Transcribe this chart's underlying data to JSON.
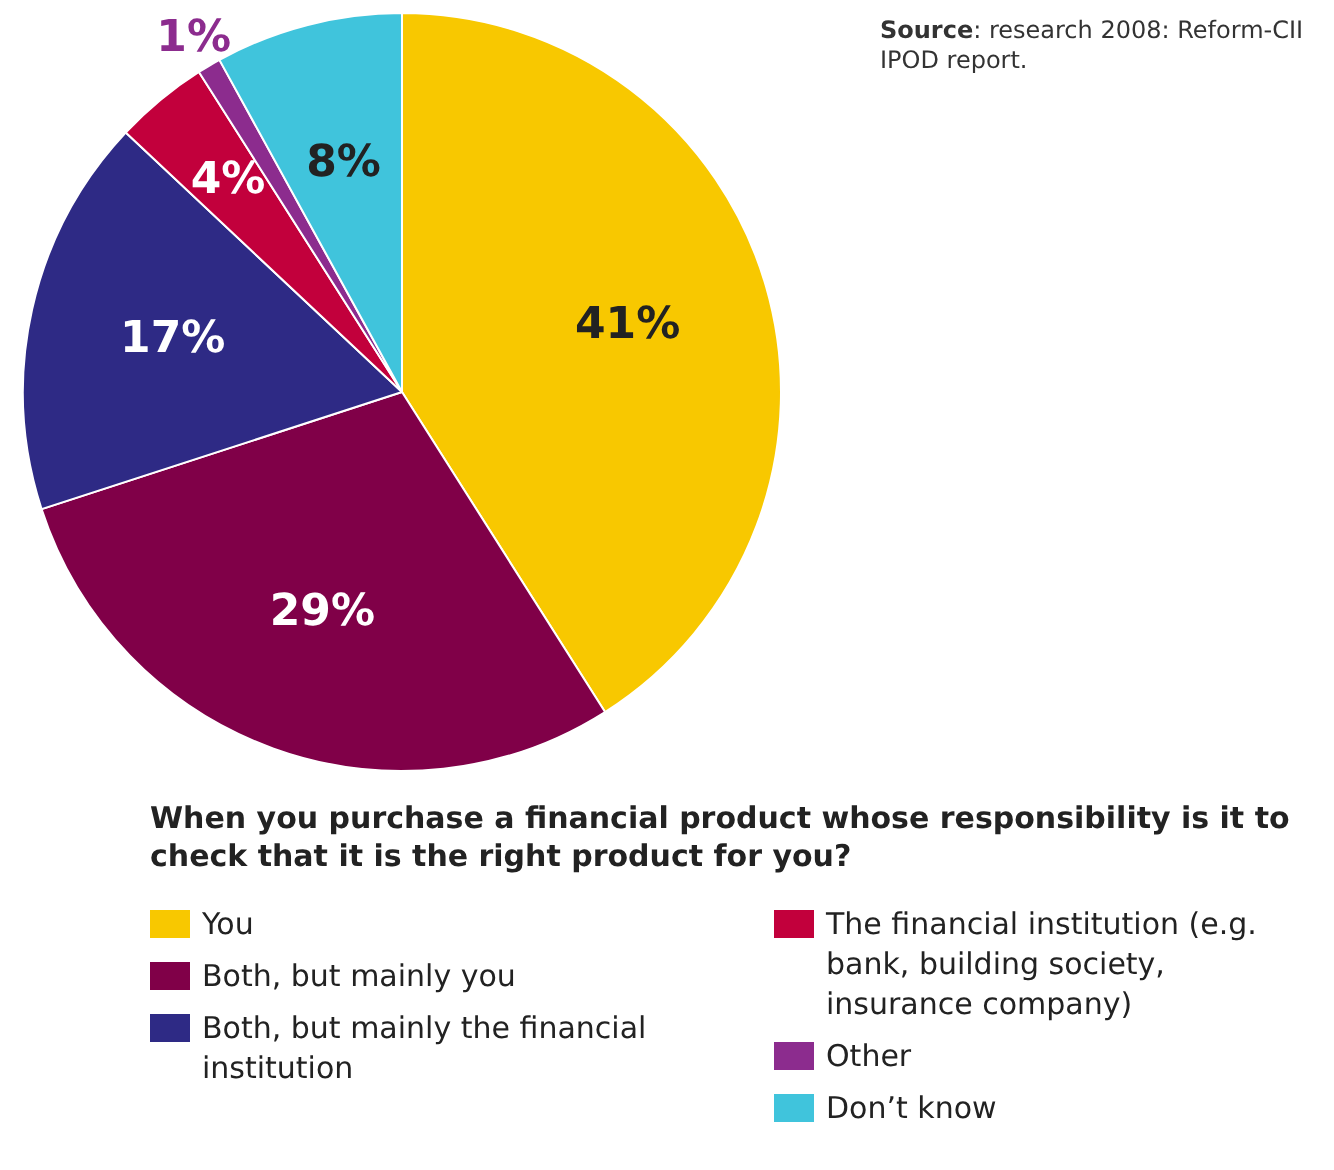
{
  "chart_data": {
    "type": "pie",
    "title": "When you purchase a financial product whose responsibility is it to check that it is the right product for you?",
    "categories": [
      "You",
      "Both, but mainly you",
      "Both, but mainly the financial institution",
      "The financial institution (e.g. bank, building society, insurance company)",
      "Other",
      "Don’t know"
    ],
    "values": [
      41,
      29,
      17,
      4,
      1,
      8
    ],
    "colors": [
      "#f8c800",
      "#800048",
      "#2e2a85",
      "#c2003c",
      "#8c2c8e",
      "#40c4dc"
    ],
    "value_labels": [
      "41%",
      "29%",
      "17%",
      "4%",
      "1%",
      "8%"
    ],
    "legend": "bottom",
    "annotations": [
      "Source: research 2008: Reform-CII IPOD report."
    ]
  }
}
